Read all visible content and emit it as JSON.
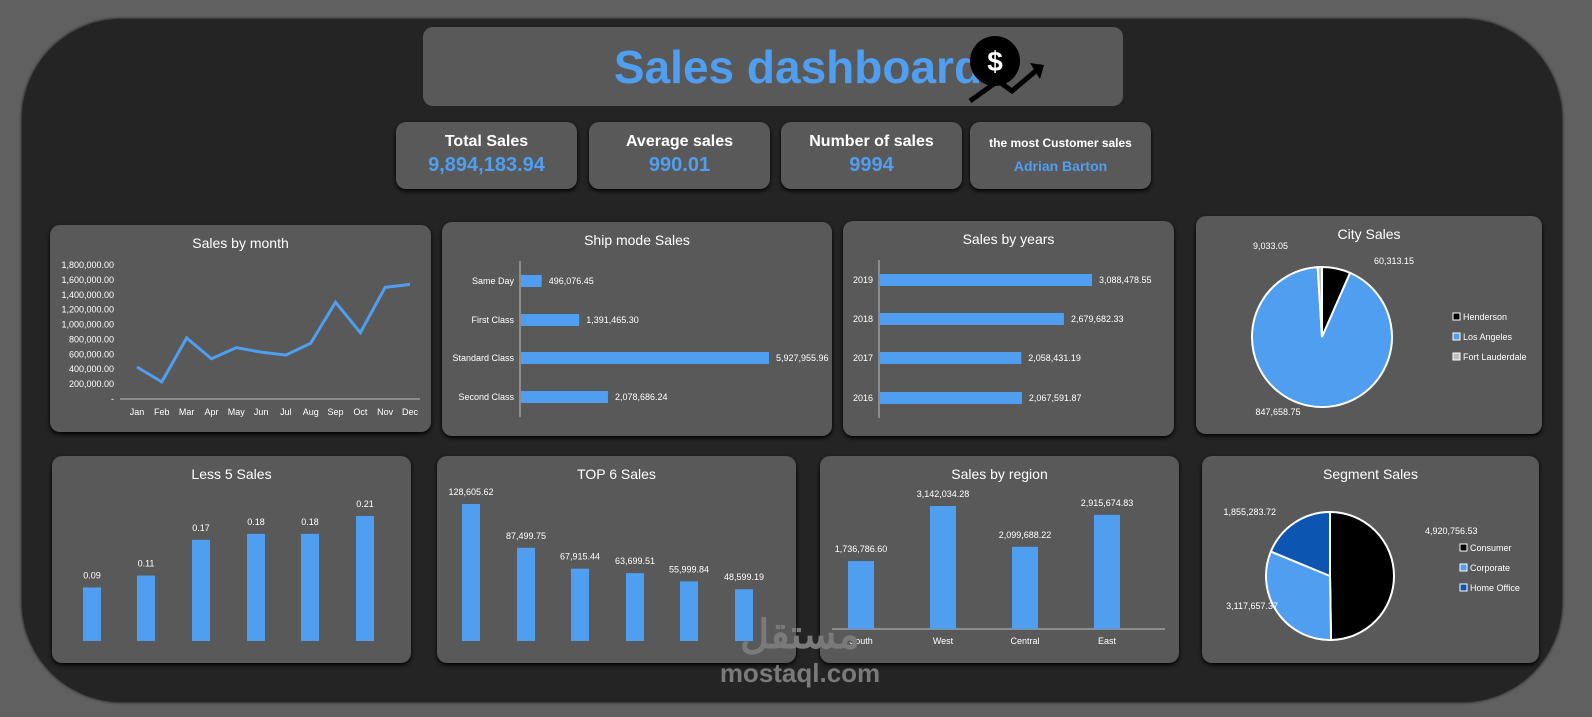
{
  "header": {
    "title": "Sales dashboard",
    "icon": "dollar-growth-icon"
  },
  "kpis": {
    "total_sales": {
      "label": "Total Sales",
      "value": "9,894,183.94"
    },
    "average_sales": {
      "label": "Average sales",
      "value": "990.01"
    },
    "number_of_sales": {
      "label": "Number of sales",
      "value": "9994"
    },
    "top_customer": {
      "label": "the most Customer sales",
      "value": "Adrian Barton"
    }
  },
  "watermark": {
    "arabic": "مستقل",
    "latin": "mostaql.com"
  },
  "colors": {
    "accent": "#4f9eef",
    "panel": "#595959",
    "frame": "#242424",
    "dark_blue": "#0c55b0"
  },
  "chart_data": [
    {
      "id": "sales_by_month",
      "type": "line",
      "title": "Sales by month",
      "categories": [
        "Jan",
        "Feb",
        "Mar",
        "Apr",
        "May",
        "Jun",
        "Jul",
        "Aug",
        "Sep",
        "Oct",
        "Nov",
        "Dec"
      ],
      "values": [
        430000,
        230000,
        820000,
        540000,
        690000,
        630000,
        590000,
        750000,
        1300000,
        890000,
        1500000,
        1540000
      ],
      "ylim": [
        0,
        1800000
      ],
      "yticks": [
        "-",
        "200,000.00",
        "400,000.00",
        "600,000.00",
        "800,000.00",
        "1,000,000.00",
        "1,200,000.00",
        "1,400,000.00",
        "1,600,000.00",
        "1,800,000.00"
      ],
      "grid": false
    },
    {
      "id": "ship_mode_sales",
      "type": "bar",
      "orientation": "horizontal",
      "title": "Ship mode Sales",
      "categories": [
        "Same Day",
        "First Class",
        "Standard Class",
        "Second Class"
      ],
      "values": [
        496076.45,
        1391465.3,
        5927955.96,
        2078686.24
      ],
      "labels": [
        "496,076.45",
        "1,391,465.30",
        "5,927,955.96",
        "2,078,686.24"
      ]
    },
    {
      "id": "sales_by_years",
      "type": "bar",
      "orientation": "horizontal",
      "title": "Sales by years",
      "categories": [
        "2019",
        "2018",
        "2017",
        "2016"
      ],
      "values": [
        3088478.55,
        2679682.33,
        2058431.19,
        2067591.87
      ],
      "labels": [
        "3,088,478.55",
        "2,679,682.33",
        "2,058,431.19",
        "2,067,591.87"
      ]
    },
    {
      "id": "city_sales",
      "type": "pie",
      "title": "City Sales",
      "categories": [
        "Henderson",
        "Los Angeles",
        "Fort Lauderdale"
      ],
      "values": [
        60313.15,
        847658.75,
        9033.05
      ],
      "labels": [
        "60,313.15",
        "847,658.75",
        "9,033.05"
      ],
      "colors": [
        "#000000",
        "#4f9eef",
        "#bfbfbf"
      ],
      "legend": "right"
    },
    {
      "id": "less_5_sales",
      "type": "bar",
      "title": "Less 5 Sales",
      "values": [
        0.09,
        0.11,
        0.17,
        0.18,
        0.18,
        0.21
      ],
      "labels": [
        "0.09",
        "0.11",
        "0.17",
        "0.18",
        "0.18",
        "0.21"
      ]
    },
    {
      "id": "top_6_sales",
      "type": "bar",
      "title": "TOP 6 Sales",
      "values": [
        128605.62,
        87499.75,
        67915.44,
        63699.51,
        55999.84,
        48599.19
      ],
      "labels": [
        "128,605.62",
        "87,499.75",
        "67,915.44",
        "63,699.51",
        "55,999.84",
        "48,599.19"
      ]
    },
    {
      "id": "sales_by_region",
      "type": "bar",
      "title": "Sales by region",
      "categories": [
        "South",
        "West",
        "Central",
        "East"
      ],
      "values": [
        1736786.6,
        3142034.28,
        2099688.22,
        2915674.83
      ],
      "labels": [
        "1,736,786.60",
        "3,142,034.28",
        "2,099,688.22",
        "2,915,674.83"
      ]
    },
    {
      "id": "segment_sales",
      "type": "pie",
      "title": "Segment Sales",
      "categories": [
        "Consumer",
        "Corporate",
        "Home Office"
      ],
      "values": [
        4920756.53,
        3117657.37,
        1855283.72
      ],
      "labels": [
        "4,920,756.53",
        "3,117,657.37",
        "1,855,283.72"
      ],
      "colors": [
        "#000000",
        "#4f9eef",
        "#0c55b0"
      ],
      "legend": "right"
    }
  ]
}
